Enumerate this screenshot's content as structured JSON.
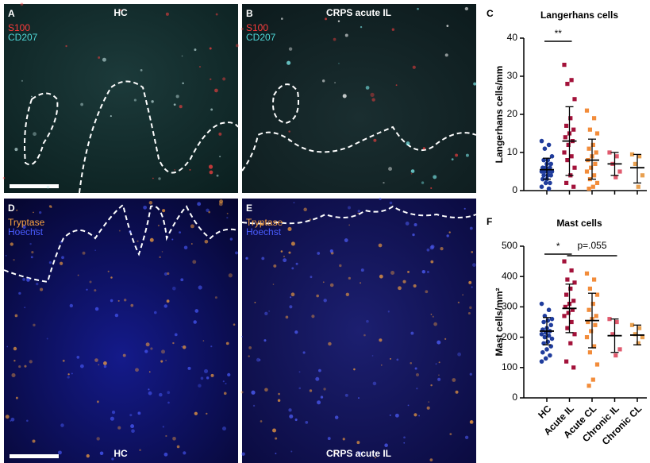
{
  "panels": [
    {
      "letter": "A",
      "title": "HC",
      "stains": [
        {
          "text": "S100",
          "color": "#ff3b3b"
        },
        {
          "text": "CD207",
          "color": "#4fd6d6"
        }
      ]
    },
    {
      "letter": "B",
      "title": "CRPS acute IL",
      "stains": [
        {
          "text": "S100",
          "color": "#ff3b3b"
        },
        {
          "text": "CD207",
          "color": "#4fd6d6"
        }
      ]
    },
    {
      "letter": "D",
      "title": "HC",
      "stains": [
        {
          "text": "Tryptase",
          "color": "#f5a040"
        },
        {
          "text": "Hoechst",
          "color": "#4a5cff"
        }
      ]
    },
    {
      "letter": "E",
      "title": "CRPS acute IL",
      "stains": [
        {
          "text": "Tryptase",
          "color": "#f5a040"
        },
        {
          "text": "Hoechst",
          "color": "#4a5cff"
        }
      ]
    }
  ],
  "chart_data": [
    {
      "type": "dot",
      "panel": "C",
      "title": "Langerhans cells",
      "ylabel": "Langerhans cells/mm",
      "ylim": [
        0,
        40
      ],
      "yticks": [
        0,
        10,
        20,
        30,
        40
      ],
      "categories": [
        null,
        null,
        null,
        null,
        null
      ],
      "groups": [
        {
          "color": "#1f3c9c",
          "marker": "circle",
          "values": [
            13,
            12,
            11,
            9,
            8,
            8,
            7,
            7,
            6,
            6,
            6,
            5,
            5,
            5,
            5,
            4,
            4,
            4,
            3,
            3,
            2,
            2,
            1,
            0.5
          ],
          "mean": 5.5,
          "sd": [
            3,
            8.5
          ]
        },
        {
          "color": "#a3123a",
          "marker": "square",
          "values": [
            33,
            29,
            28,
            24,
            19,
            17,
            16,
            15,
            14,
            13,
            12,
            10,
            9,
            8,
            6,
            4,
            2,
            1
          ],
          "mean": 13,
          "sd": [
            4,
            22
          ]
        },
        {
          "color": "#f28c3a",
          "marker": "square",
          "values": [
            21,
            19,
            16,
            15,
            12,
            11,
            10,
            9,
            8,
            7,
            6,
            5,
            4,
            3,
            2,
            1,
            0.5
          ],
          "mean": 8,
          "sd": [
            3,
            13.5
          ]
        },
        {
          "color": "#e05a6e",
          "marker": "square",
          "values": [
            10,
            9,
            7,
            5,
            3.5
          ],
          "mean": 7,
          "sd": [
            4,
            10
          ]
        },
        {
          "color": "#e8a050",
          "marker": "square",
          "values": [
            9.5,
            9,
            7,
            4,
            1
          ],
          "mean": 6,
          "sd": [
            2,
            9.5
          ]
        }
      ],
      "annotations": [
        {
          "text": "**"
        }
      ]
    },
    {
      "type": "dot",
      "panel": "F",
      "title": "Mast cells",
      "ylabel": "Mast cells/mm²",
      "ylim": [
        0,
        500
      ],
      "yticks": [
        0,
        100,
        200,
        300,
        400,
        500
      ],
      "categories": [
        "HC",
        "Acute IL",
        "Acute CL",
        "Chronic IL",
        "Chronic CL"
      ],
      "groups": [
        {
          "color": "#1f3c9c",
          "marker": "circle",
          "values": [
            310,
            290,
            270,
            260,
            255,
            250,
            240,
            230,
            225,
            220,
            215,
            210,
            205,
            200,
            195,
            185,
            180,
            170,
            160,
            150,
            140,
            130,
            120
          ],
          "mean": 220,
          "sd": [
            175,
            265
          ]
        },
        {
          "color": "#a3123a",
          "marker": "square",
          "values": [
            450,
            420,
            390,
            380,
            360,
            340,
            320,
            310,
            300,
            290,
            280,
            270,
            250,
            230,
            210,
            180,
            120,
            100
          ],
          "mean": 295,
          "sd": [
            215,
            375
          ]
        },
        {
          "color": "#f28c3a",
          "marker": "square",
          "values": [
            410,
            390,
            360,
            340,
            310,
            290,
            270,
            260,
            250,
            240,
            220,
            200,
            170,
            150,
            110,
            60,
            40
          ],
          "mean": 255,
          "sd": [
            165,
            345
          ]
        },
        {
          "color": "#e05a6e",
          "marker": "square",
          "values": [
            260,
            250,
            210,
            160,
            140
          ],
          "mean": 205,
          "sd": [
            150,
            260
          ]
        },
        {
          "color": "#e8a050",
          "marker": "square",
          "values": [
            240,
            230,
            210,
            200,
            180
          ],
          "mean": 207,
          "sd": [
            175,
            240
          ]
        }
      ],
      "annotations": [
        {
          "text": "*"
        },
        {
          "text": "p=.055"
        }
      ]
    }
  ]
}
